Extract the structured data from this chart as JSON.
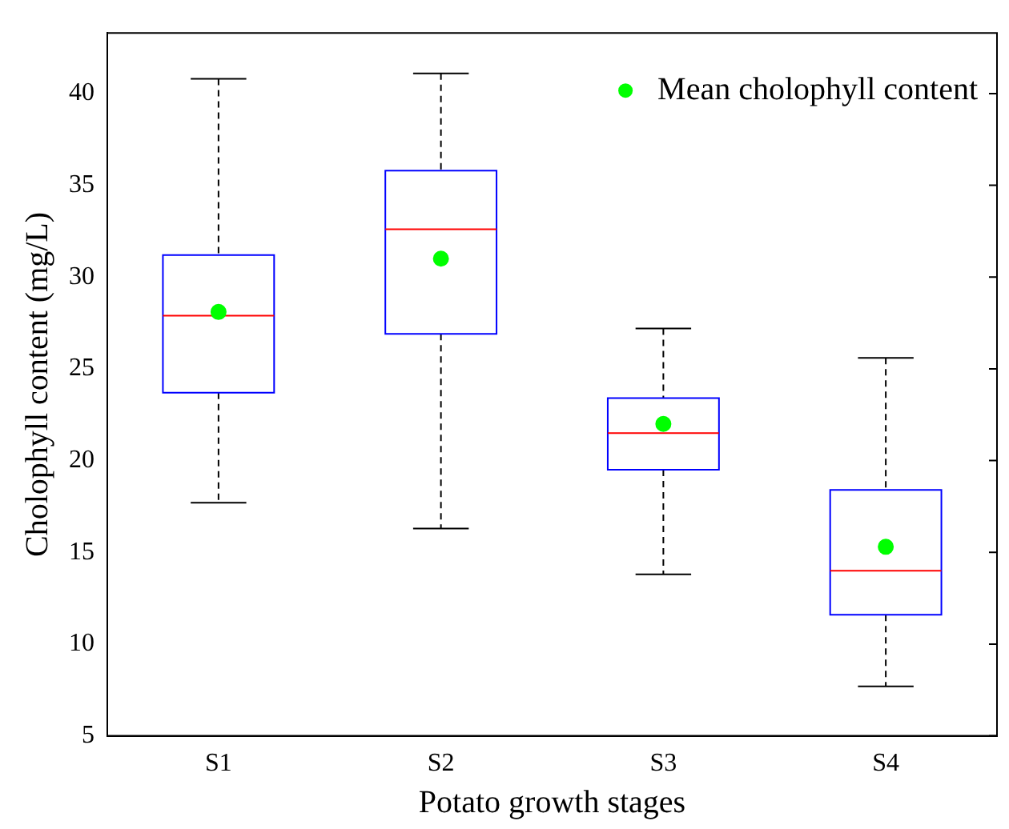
{
  "chart_data": {
    "type": "box",
    "xlabel": "Potato growth stages",
    "ylabel": "Cholophyll content (mg/L)",
    "categories": [
      "S1",
      "S2",
      "S3",
      "S4"
    ],
    "ylim": [
      5,
      43.3
    ],
    "yticks": [
      5,
      10,
      15,
      20,
      25,
      30,
      35,
      40
    ],
    "grid": false,
    "legend": "top right",
    "series": [
      {
        "type": "box",
        "color": "#0000ff",
        "boxes": [
          {
            "low": 17.7,
            "q1": 23.7,
            "median": 27.9,
            "q3": 31.2,
            "high": 40.8
          },
          {
            "low": 16.3,
            "q1": 26.9,
            "median": 32.6,
            "q3": 35.8,
            "high": 41.1
          },
          {
            "low": 13.8,
            "q1": 19.5,
            "median": 21.5,
            "q3": 23.4,
            "high": 27.2
          },
          {
            "low": 7.7,
            "q1": 11.6,
            "median": 14.0,
            "q3": 18.4,
            "high": 25.6
          }
        ]
      },
      {
        "type": "scatter",
        "name": "Mean cholophyll content",
        "color": "#00ff00",
        "marker": "circle",
        "x": [
          "S1",
          "S2",
          "S3",
          "S4"
        ],
        "values": [
          28.1,
          31.0,
          22.0,
          15.3
        ]
      }
    ]
  }
}
